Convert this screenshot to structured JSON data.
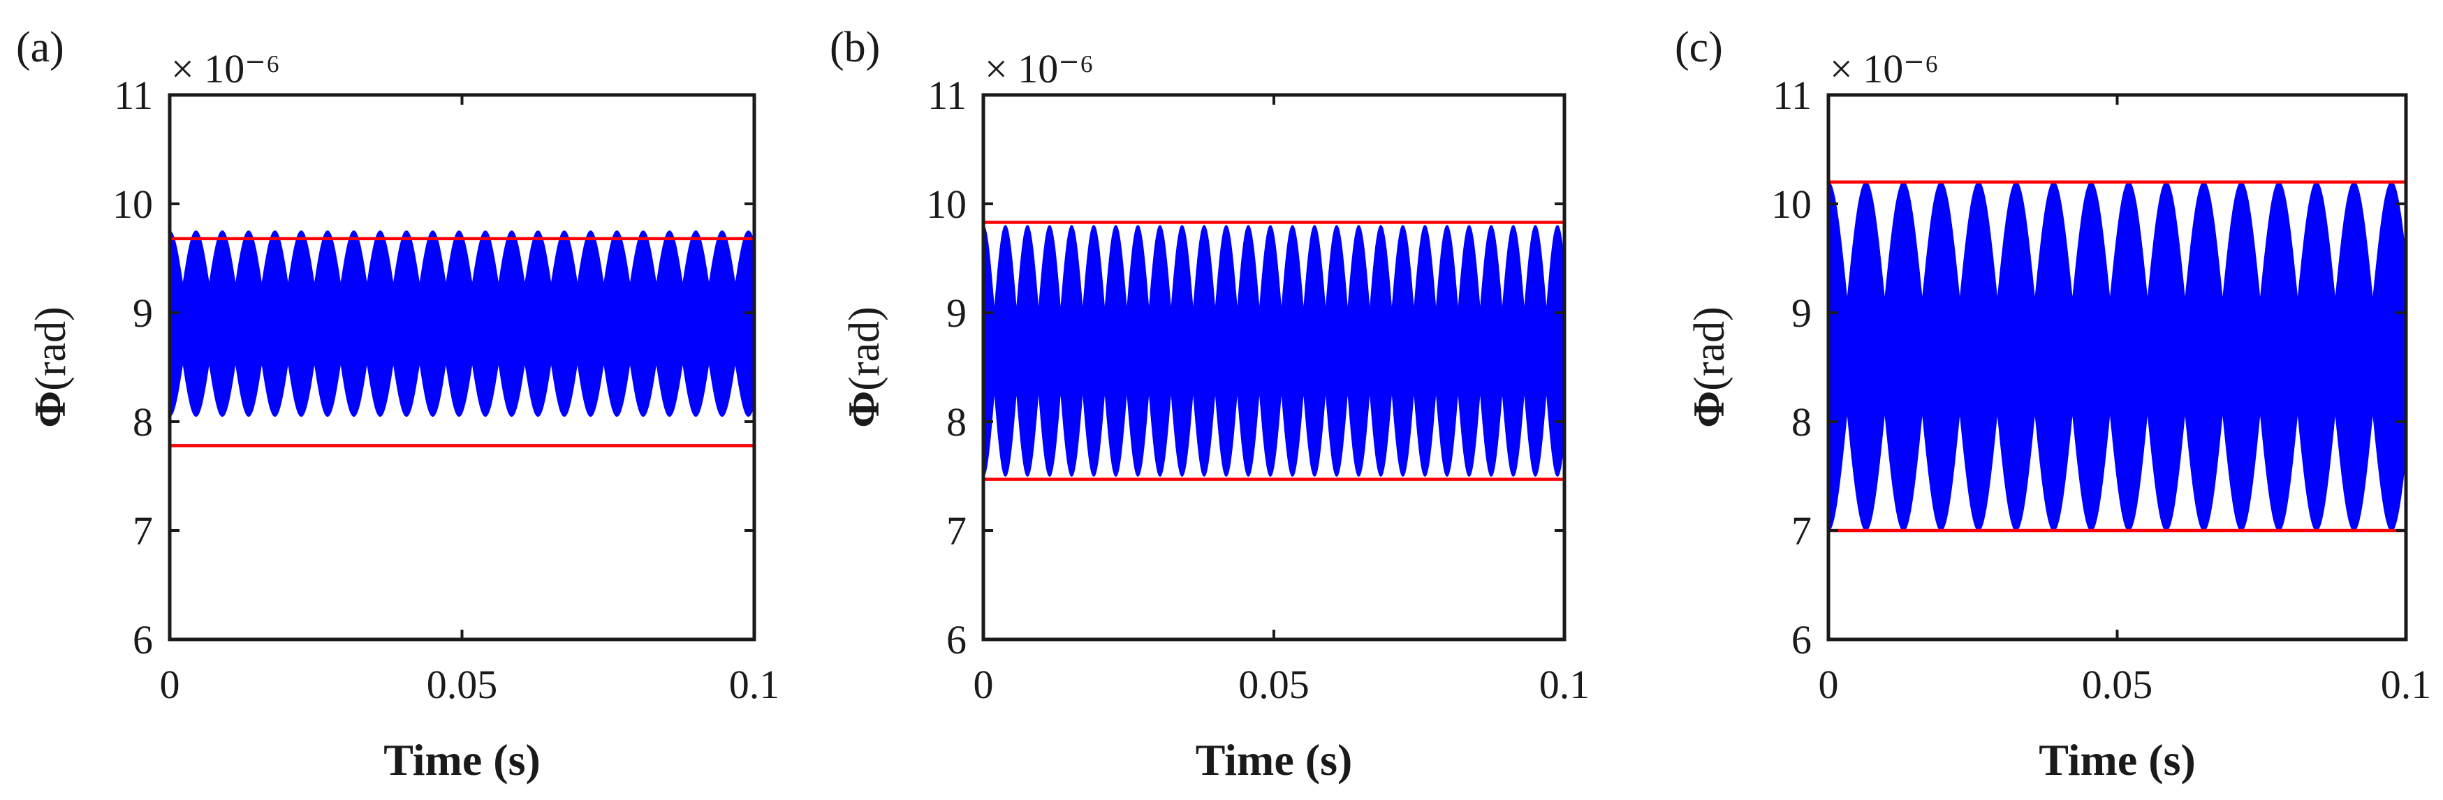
{
  "chart_data": [
    {
      "type": "line",
      "panel_label": "(a)",
      "y_exponent": "× 10⁻⁶",
      "xlabel": "Time (s)",
      "ylabel_symbol": "Φ",
      "ylabel_unit": "(rad)",
      "x_ticks": [
        "0",
        "0.05",
        "0.1"
      ],
      "y_ticks": [
        "6",
        "7",
        "8",
        "9",
        "10",
        "11"
      ],
      "xlim": [
        0,
        0.1
      ],
      "ylim": [
        6,
        11
      ],
      "series": [
        {
          "color": "#0000ff",
          "center": 8.9,
          "fast_amplitude": 0.35,
          "envelope_amplitude": 0.5,
          "envelope_period": 0.0045,
          "samples": [
            [
              0,
              8.9
            ],
            [
              0.05,
              8.9
            ],
            [
              0.1,
              8.9
            ]
          ]
        }
      ],
      "bound_lines": [
        {
          "color": "#ff0000",
          "value": 9.68
        },
        {
          "color": "#ff0000",
          "value": 7.78
        }
      ]
    },
    {
      "type": "line",
      "panel_label": "(b)",
      "y_exponent": "× 10⁻⁶",
      "xlabel": "Time (s)",
      "ylabel_symbol": "Φ",
      "ylabel_unit": "(rad)",
      "x_ticks": [
        "0",
        "0.05",
        "0.1"
      ],
      "y_ticks": [
        "6",
        "7",
        "8",
        "9",
        "10",
        "11"
      ],
      "xlim": [
        0,
        0.1
      ],
      "ylim": [
        6,
        11
      ],
      "series": [
        {
          "color": "#0000ff",
          "center": 8.65,
          "fast_amplitude": 0.35,
          "envelope_amplitude": 0.8,
          "envelope_period": 0.0038,
          "samples": [
            [
              0,
              8.65
            ],
            [
              0.05,
              8.65
            ],
            [
              0.1,
              8.65
            ]
          ]
        }
      ],
      "bound_lines": [
        {
          "color": "#ff0000",
          "value": 9.83
        },
        {
          "color": "#ff0000",
          "value": 7.47
        }
      ]
    },
    {
      "type": "line",
      "panel_label": "(c)",
      "y_exponent": "× 10⁻⁶",
      "xlabel": "Time (s)",
      "ylabel_symbol": "Φ",
      "ylabel_unit": "(rad)",
      "x_ticks": [
        "0",
        "0.05",
        "0.1"
      ],
      "y_ticks": [
        "6",
        "7",
        "8",
        "9",
        "10",
        "11"
      ],
      "xlim": [
        0,
        0.1
      ],
      "ylim": [
        6,
        11
      ],
      "series": [
        {
          "color": "#0000ff",
          "center": 8.6,
          "fast_amplitude": 0.5,
          "envelope_amplitude": 1.1,
          "envelope_period": 0.0065,
          "samples": [
            [
              0,
              8.6
            ],
            [
              0.05,
              8.6
            ],
            [
              0.1,
              8.6
            ]
          ]
        }
      ],
      "bound_lines": [
        {
          "color": "#ff0000",
          "value": 10.2
        },
        {
          "color": "#ff0000",
          "value": 7.0
        }
      ]
    }
  ]
}
